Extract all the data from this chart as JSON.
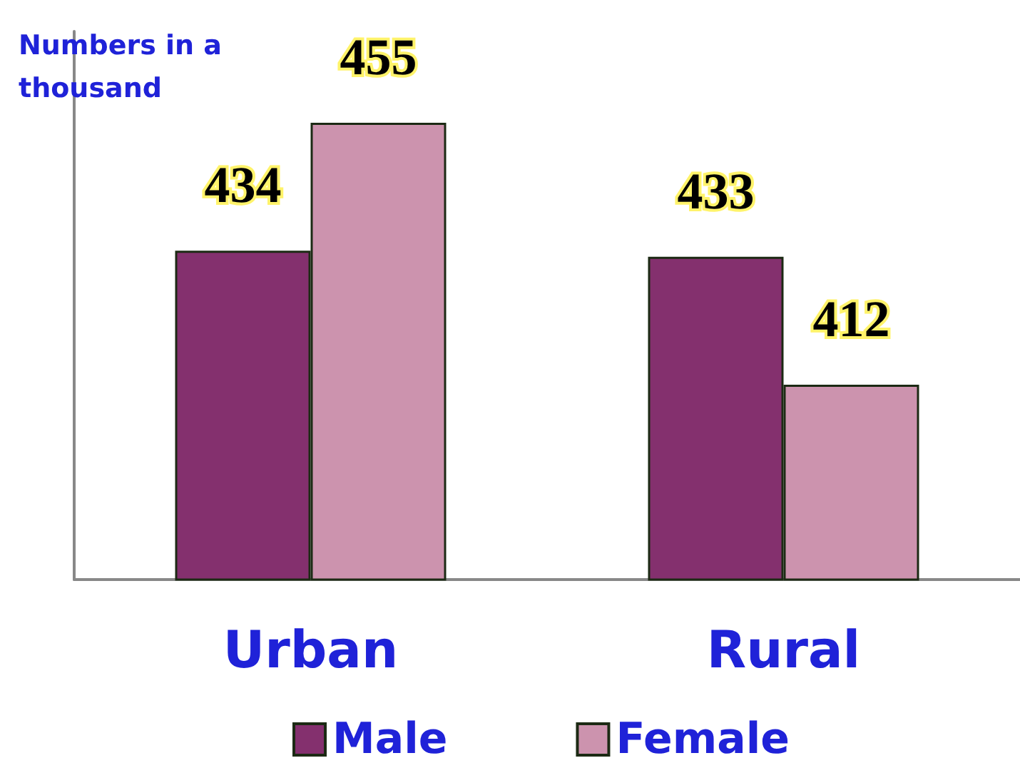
{
  "chart_data": {
    "type": "bar",
    "ylabel": "Numbers in a\nthousand",
    "categories": [
      "Urban",
      "Rural"
    ],
    "series": [
      {
        "name": "Male",
        "color": "#84306e",
        "values": [
          434,
          433
        ]
      },
      {
        "name": "Female",
        "color": "#cc93ae",
        "values": [
          455,
          412
        ]
      }
    ],
    "ylim": [
      380,
      470
    ],
    "data_labels": true,
    "legend": "bottom",
    "grid": false
  }
}
